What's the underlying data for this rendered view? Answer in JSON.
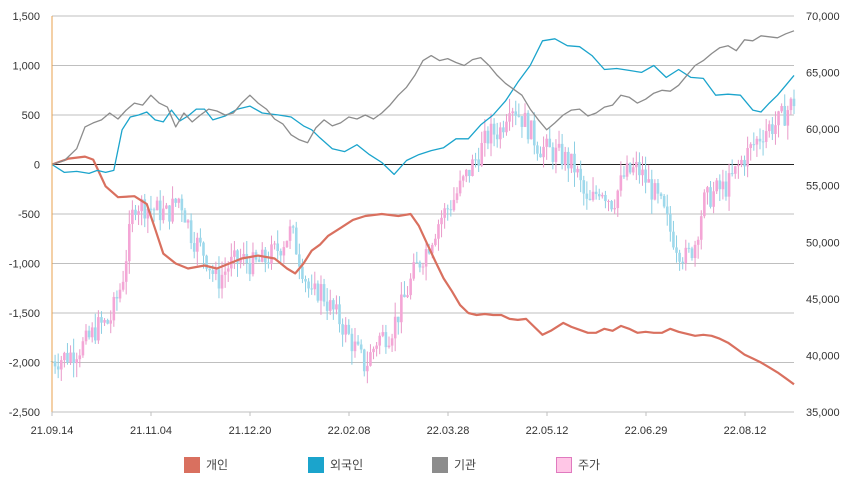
{
  "chart_data": {
    "type": "line",
    "title": "",
    "left_axis": {
      "ticks": [
        "1,500",
        "1,000",
        "500",
        "0",
        "-500",
        "-1,000",
        "-1,500",
        "-2,000",
        "-2,500"
      ],
      "values": [
        1500,
        1000,
        500,
        0,
        -500,
        -1000,
        -1500,
        -2000,
        -2500
      ],
      "range": [
        -2500,
        1500
      ]
    },
    "right_axis": {
      "ticks": [
        "70,000",
        "65,000",
        "60,000",
        "55,000",
        "50,000",
        "45,000",
        "40,000",
        "35,000"
      ],
      "values": [
        70000,
        65000,
        60000,
        55000,
        50000,
        45000,
        40000,
        35000
      ],
      "range": [
        35000,
        70000
      ]
    },
    "x_labels": [
      "21.09.14",
      "21.11.04",
      "21.12.20",
      "22.02.08",
      "22.03.28",
      "22.05.12",
      "22.06.29",
      "22.08.12"
    ],
    "grid": true,
    "legend_position": "bottom",
    "series": [
      {
        "name": "개인",
        "color": "#d9705f",
        "axis": "left",
        "points": [
          [
            0,
            0
          ],
          [
            4,
            60
          ],
          [
            8,
            80
          ],
          [
            10,
            50
          ],
          [
            13,
            -220
          ],
          [
            16,
            -330
          ],
          [
            20,
            -320
          ],
          [
            23,
            -400
          ],
          [
            25,
            -650
          ],
          [
            27,
            -900
          ],
          [
            30,
            -1000
          ],
          [
            33,
            -1050
          ],
          [
            37,
            -1020
          ],
          [
            40,
            -1050
          ],
          [
            43,
            -1000
          ],
          [
            46,
            -950
          ],
          [
            50,
            -920
          ],
          [
            54,
            -950
          ],
          [
            57,
            -1050
          ],
          [
            59,
            -1100
          ],
          [
            61,
            -1000
          ],
          [
            63,
            -870
          ],
          [
            65,
            -810
          ],
          [
            67,
            -720
          ],
          [
            70,
            -640
          ],
          [
            73,
            -560
          ],
          [
            76,
            -520
          ],
          [
            80,
            -500
          ],
          [
            84,
            -520
          ],
          [
            87,
            -500
          ],
          [
            89,
            -620
          ],
          [
            91,
            -800
          ],
          [
            93,
            -980
          ],
          [
            95,
            -1150
          ],
          [
            97,
            -1280
          ],
          [
            99,
            -1420
          ],
          [
            101,
            -1500
          ],
          [
            103,
            -1520
          ],
          [
            105,
            -1510
          ],
          [
            107,
            -1520
          ],
          [
            109,
            -1520
          ],
          [
            111,
            -1560
          ],
          [
            113,
            -1570
          ],
          [
            115,
            -1560
          ],
          [
            117,
            -1640
          ],
          [
            119,
            -1720
          ],
          [
            121,
            -1680
          ],
          [
            124,
            -1600
          ],
          [
            126,
            -1640
          ],
          [
            128,
            -1670
          ],
          [
            130,
            -1700
          ],
          [
            132,
            -1700
          ],
          [
            134,
            -1660
          ],
          [
            136,
            -1680
          ],
          [
            138,
            -1630
          ],
          [
            140,
            -1660
          ],
          [
            142,
            -1700
          ],
          [
            144,
            -1690
          ],
          [
            146,
            -1700
          ],
          [
            148,
            -1700
          ],
          [
            150,
            -1660
          ],
          [
            152,
            -1690
          ],
          [
            154,
            -1710
          ],
          [
            156,
            -1730
          ],
          [
            158,
            -1720
          ],
          [
            160,
            -1730
          ],
          [
            162,
            -1760
          ],
          [
            164,
            -1800
          ],
          [
            166,
            -1860
          ],
          [
            168,
            -1920
          ],
          [
            170,
            -1960
          ],
          [
            172,
            -2000
          ],
          [
            174,
            -2050
          ],
          [
            176,
            -2100
          ],
          [
            178,
            -2160
          ],
          [
            180,
            -2220
          ]
        ]
      },
      {
        "name": "외국인",
        "color": "#1ba4cc",
        "axis": "left",
        "points": [
          [
            0,
            0
          ],
          [
            3,
            -80
          ],
          [
            6,
            -70
          ],
          [
            9,
            -90
          ],
          [
            11,
            -60
          ],
          [
            13,
            -80
          ],
          [
            15,
            -60
          ],
          [
            17,
            350
          ],
          [
            19,
            480
          ],
          [
            21,
            500
          ],
          [
            23,
            530
          ],
          [
            25,
            450
          ],
          [
            27,
            430
          ],
          [
            29,
            550
          ],
          [
            31,
            440
          ],
          [
            33,
            490
          ],
          [
            35,
            560
          ],
          [
            37,
            560
          ],
          [
            39,
            450
          ],
          [
            42,
            490
          ],
          [
            45,
            560
          ],
          [
            48,
            590
          ],
          [
            51,
            520
          ],
          [
            55,
            500
          ],
          [
            58,
            480
          ],
          [
            61,
            390
          ],
          [
            63,
            350
          ],
          [
            65,
            270
          ],
          [
            68,
            160
          ],
          [
            71,
            130
          ],
          [
            74,
            200
          ],
          [
            77,
            100
          ],
          [
            80,
            20
          ],
          [
            83,
            -100
          ],
          [
            86,
            40
          ],
          [
            89,
            100
          ],
          [
            92,
            140
          ],
          [
            95,
            170
          ],
          [
            98,
            260
          ],
          [
            101,
            260
          ],
          [
            104,
            400
          ],
          [
            107,
            500
          ],
          [
            110,
            640
          ],
          [
            113,
            830
          ],
          [
            116,
            1000
          ],
          [
            119,
            1250
          ],
          [
            122,
            1270
          ],
          [
            125,
            1200
          ],
          [
            128,
            1190
          ],
          [
            131,
            1100
          ],
          [
            134,
            960
          ],
          [
            137,
            970
          ],
          [
            140,
            950
          ],
          [
            143,
            930
          ],
          [
            146,
            1000
          ],
          [
            149,
            880
          ],
          [
            152,
            960
          ],
          [
            155,
            880
          ],
          [
            158,
            870
          ],
          [
            161,
            700
          ],
          [
            164,
            710
          ],
          [
            167,
            700
          ],
          [
            170,
            550
          ],
          [
            172,
            530
          ],
          [
            174,
            620
          ],
          [
            176,
            700
          ],
          [
            178,
            800
          ],
          [
            180,
            900
          ]
        ]
      },
      {
        "name": "기관",
        "color": "#8c8c8c",
        "axis": "left",
        "points": [
          [
            0,
            0
          ],
          [
            3,
            40
          ],
          [
            6,
            160
          ],
          [
            8,
            380
          ],
          [
            10,
            420
          ],
          [
            12,
            450
          ],
          [
            14,
            520
          ],
          [
            16,
            460
          ],
          [
            18,
            550
          ],
          [
            20,
            620
          ],
          [
            22,
            600
          ],
          [
            24,
            700
          ],
          [
            26,
            620
          ],
          [
            28,
            580
          ],
          [
            30,
            380
          ],
          [
            32,
            520
          ],
          [
            34,
            430
          ],
          [
            36,
            500
          ],
          [
            38,
            560
          ],
          [
            40,
            540
          ],
          [
            42,
            500
          ],
          [
            44,
            520
          ],
          [
            46,
            620
          ],
          [
            48,
            700
          ],
          [
            50,
            620
          ],
          [
            52,
            560
          ],
          [
            54,
            460
          ],
          [
            56,
            410
          ],
          [
            58,
            300
          ],
          [
            60,
            250
          ],
          [
            62,
            220
          ],
          [
            64,
            370
          ],
          [
            66,
            450
          ],
          [
            68,
            390
          ],
          [
            70,
            420
          ],
          [
            72,
            480
          ],
          [
            74,
            460
          ],
          [
            76,
            500
          ],
          [
            78,
            460
          ],
          [
            80,
            520
          ],
          [
            82,
            600
          ],
          [
            84,
            700
          ],
          [
            86,
            780
          ],
          [
            88,
            900
          ],
          [
            90,
            1050
          ],
          [
            92,
            1100
          ],
          [
            94,
            1050
          ],
          [
            96,
            1070
          ],
          [
            98,
            1030
          ],
          [
            100,
            1000
          ],
          [
            102,
            1060
          ],
          [
            104,
            1080
          ],
          [
            106,
            1000
          ],
          [
            108,
            900
          ],
          [
            110,
            820
          ],
          [
            112,
            760
          ],
          [
            114,
            700
          ],
          [
            116,
            560
          ],
          [
            118,
            450
          ],
          [
            120,
            350
          ],
          [
            122,
            420
          ],
          [
            124,
            500
          ],
          [
            126,
            550
          ],
          [
            128,
            560
          ],
          [
            130,
            490
          ],
          [
            132,
            520
          ],
          [
            134,
            580
          ],
          [
            136,
            600
          ],
          [
            138,
            700
          ],
          [
            140,
            680
          ],
          [
            142,
            620
          ],
          [
            144,
            660
          ],
          [
            146,
            720
          ],
          [
            148,
            750
          ],
          [
            150,
            740
          ],
          [
            152,
            800
          ],
          [
            154,
            900
          ],
          [
            156,
            1000
          ],
          [
            158,
            1050
          ],
          [
            160,
            1120
          ],
          [
            162,
            1180
          ],
          [
            164,
            1200
          ],
          [
            166,
            1150
          ],
          [
            168,
            1260
          ],
          [
            170,
            1250
          ],
          [
            172,
            1300
          ],
          [
            174,
            1290
          ],
          [
            176,
            1280
          ],
          [
            178,
            1320
          ],
          [
            180,
            1350
          ]
        ]
      },
      {
        "name": "주가",
        "color": "#ffc6e6",
        "axis": "right",
        "type": "candlestick",
        "points": [
          [
            0,
            39500
          ],
          [
            4,
            40000
          ],
          [
            8,
            41000
          ],
          [
            11,
            42500
          ],
          [
            14,
            43000
          ],
          [
            17,
            46500
          ],
          [
            20,
            53500
          ],
          [
            24,
            53000
          ],
          [
            28,
            52500
          ],
          [
            31,
            54000
          ],
          [
            34,
            50500
          ],
          [
            37,
            49000
          ],
          [
            40,
            46500
          ],
          [
            43,
            48000
          ],
          [
            46,
            48500
          ],
          [
            49,
            48000
          ],
          [
            52,
            48500
          ],
          [
            55,
            49500
          ],
          [
            58,
            51000
          ],
          [
            61,
            47500
          ],
          [
            63,
            45000
          ],
          [
            65,
            46000
          ],
          [
            67,
            44500
          ],
          [
            70,
            43000
          ],
          [
            73,
            41000
          ],
          [
            76,
            39000
          ],
          [
            79,
            41500
          ],
          [
            82,
            42000
          ],
          [
            85,
            44500
          ],
          [
            88,
            47500
          ],
          [
            91,
            49500
          ],
          [
            94,
            52000
          ],
          [
            97,
            53500
          ],
          [
            100,
            55500
          ],
          [
            103,
            57500
          ],
          [
            106,
            59500
          ],
          [
            109,
            60000
          ],
          [
            111,
            62500
          ],
          [
            113,
            61500
          ],
          [
            115,
            60500
          ],
          [
            118,
            58500
          ],
          [
            121,
            58000
          ],
          [
            124,
            57500
          ],
          [
            127,
            56500
          ],
          [
            130,
            53000
          ],
          [
            133,
            55000
          ],
          [
            136,
            53500
          ],
          [
            139,
            56000
          ],
          [
            142,
            56500
          ],
          [
            145,
            55000
          ],
          [
            148,
            53000
          ],
          [
            150,
            51000
          ],
          [
            152,
            49500
          ],
          [
            154,
            48500
          ],
          [
            156,
            50000
          ],
          [
            158,
            53500
          ],
          [
            161,
            54500
          ],
          [
            164,
            55000
          ],
          [
            167,
            57000
          ],
          [
            170,
            58500
          ],
          [
            173,
            60000
          ],
          [
            176,
            60500
          ],
          [
            178,
            61500
          ],
          [
            180,
            62500
          ]
        ]
      }
    ]
  },
  "legend": [
    {
      "label": "개인",
      "color": "#d9705f"
    },
    {
      "label": "외국인",
      "color": "#1ba4cc"
    },
    {
      "label": "기관",
      "color": "#8c8c8c"
    },
    {
      "label": "주가",
      "color": "#ffc6e6"
    }
  ]
}
